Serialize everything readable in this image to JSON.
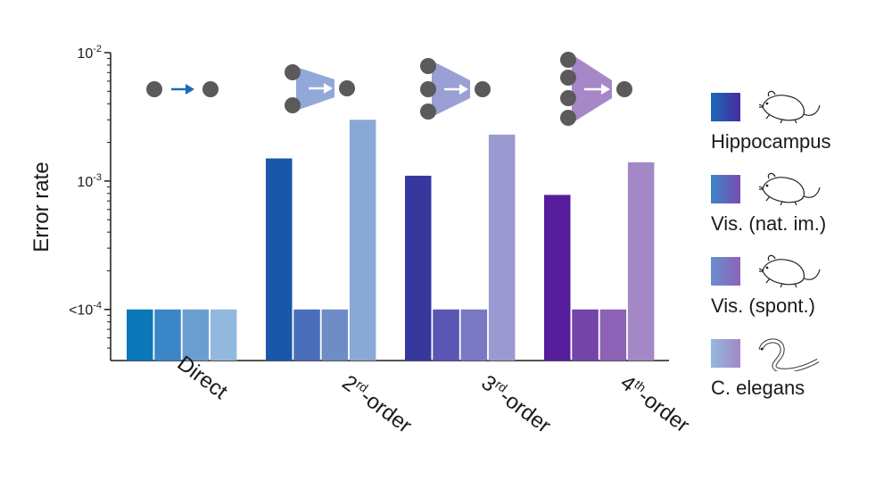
{
  "chart_data": {
    "type": "bar",
    "ylabel": "Error rate",
    "yscale": "log",
    "ylim": [
      4e-05,
      0.01
    ],
    "yticks": [
      {
        "base": "10",
        "exp": "-2",
        "prefix": "",
        "value": 0.01
      },
      {
        "base": "10",
        "exp": "-3",
        "prefix": "",
        "value": 0.001
      },
      {
        "base": "10",
        "exp": "-4",
        "prefix": "<",
        "value": 0.0001
      }
    ],
    "categories": [
      {
        "main": "Direct",
        "sup": "",
        "suffix": ""
      },
      {
        "main": "2",
        "sup": "rd",
        "suffix": "-order"
      },
      {
        "main": "3",
        "sup": "rd",
        "suffix": "-order"
      },
      {
        "main": "4",
        "sup": "th",
        "suffix": "-order"
      }
    ],
    "series": [
      {
        "name": "Hippocampus",
        "values": [
          0.0001,
          0.0015,
          0.0011,
          0.00078
        ]
      },
      {
        "name": "Vis. (nat. im.)",
        "values": [
          0.0001,
          0.0001,
          0.0001,
          0.0001
        ]
      },
      {
        "name": "Vis. (spont.)",
        "values": [
          0.0001,
          0.0001,
          0.0001,
          0.0001
        ]
      },
      {
        "name": "C. elegans",
        "values": [
          0.0001,
          0.003,
          0.0023,
          0.0014
        ]
      }
    ],
    "colors": [
      [
        "#0a78b8",
        "#1a56aa",
        "#36389e",
        "#561c9c"
      ],
      [
        "#3b86c6",
        "#4a6ebc",
        "#5a56b4",
        "#7444a8"
      ],
      [
        "#6a9ed0",
        "#6e8cc6",
        "#7a78c2",
        "#8c62b6"
      ],
      [
        "#92b8de",
        "#8aa8d6",
        "#9a9ad0",
        "#a488c6"
      ]
    ],
    "legend_gradients": [
      [
        "#1a6ab6",
        "#4a2aa0"
      ],
      [
        "#3b86c6",
        "#7a4cb0"
      ],
      [
        "#6a8ed0",
        "#8c62b6"
      ],
      [
        "#92b8de",
        "#a488c6"
      ]
    ],
    "legend_icons": [
      "mouse-icon",
      "mouse-icon",
      "mouse-icon",
      "worm-icon"
    ],
    "motif_icons": [
      "direct-edge-icon",
      "second-order-motif-icon",
      "third-order-motif-icon",
      "fourth-order-motif-icon"
    ],
    "motif_colors": [
      "#1a6ab6",
      "#92a8d8",
      "#9aa0d4",
      "#a688c8"
    ],
    "grid": false,
    "legend_placement": "right"
  }
}
